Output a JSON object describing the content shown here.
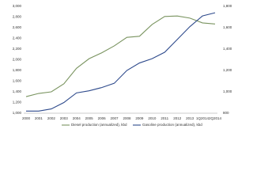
{
  "chart_data": {
    "type": "line",
    "categories": [
      "2000",
      "2001",
      "2002",
      "2003",
      "2004",
      "2005",
      "2006",
      "2007",
      "2008",
      "2009",
      "2010",
      "2011",
      "2012",
      "2013",
      "1Q2014",
      "2Q2014"
    ],
    "series": [
      {
        "name": "Diesel production (annualized), kbd",
        "color": "#7a9460",
        "values": [
          1310,
          1370,
          1400,
          1550,
          1840,
          2020,
          2130,
          2260,
          2420,
          2440,
          2660,
          2810,
          2820,
          2780,
          2690,
          2670
        ]
      },
      {
        "name": "Gasoline production (annualized), kbd",
        "color": "#2e4a8c",
        "axis": "y2",
        "values": [
          820,
          820,
          840,
          900,
          990,
          1010,
          1040,
          1080,
          1200,
          1270,
          1310,
          1370,
          1490,
          1610,
          1710,
          1740
        ]
      }
    ],
    "ylim": [
      1000,
      3000
    ],
    "yticks": [
      {
        "value": 1000,
        "label": "1,000"
      },
      {
        "value": 1200,
        "label": "1,200"
      },
      {
        "value": 1400,
        "label": "1,400"
      },
      {
        "value": 1600,
        "label": "1,600"
      },
      {
        "value": 1800,
        "label": "1,800"
      },
      {
        "value": 2000,
        "label": "2,000"
      },
      {
        "value": 2200,
        "label": "2,200"
      },
      {
        "value": 2400,
        "label": "2,400"
      },
      {
        "value": 2600,
        "label": "2,600"
      },
      {
        "value": 2800,
        "label": "2,800"
      },
      {
        "value": 3000,
        "label": "3,000"
      }
    ],
    "y2lim": [
      800,
      1800
    ],
    "y2ticks": [
      800,
      {
        "value": 1000,
        "label": "1,000"
      },
      {
        "value": 1200,
        "label": "1,200"
      },
      {
        "value": 1400,
        "label": "1,400"
      },
      {
        "value": 1600,
        "label": "1,600"
      },
      {
        "value": 1800,
        "label": "1,800"
      }
    ]
  }
}
